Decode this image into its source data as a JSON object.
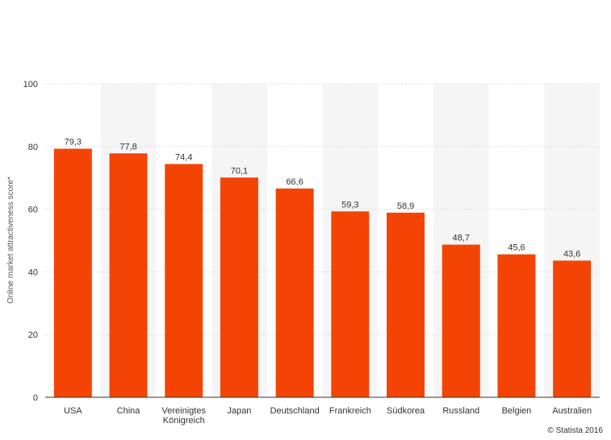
{
  "credit": "© Statista 2016",
  "colors": {
    "bar": "#f44405",
    "band": "#f5f5f5",
    "grid": "#cccccc",
    "axis": "#333333"
  },
  "chart_data": {
    "type": "bar",
    "ylabel": "Online market attractiveness score*",
    "ylim": [
      0,
      100
    ],
    "yticks": [
      0,
      20,
      40,
      60,
      80,
      100
    ],
    "grid": true,
    "categories": [
      [
        "USA"
      ],
      [
        "China"
      ],
      [
        "Vereinigtes",
        "Königreich"
      ],
      [
        "Japan"
      ],
      [
        "Deutschland"
      ],
      [
        "Frankreich"
      ],
      [
        "Südkorea"
      ],
      [
        "Russland"
      ],
      [
        "Belgien"
      ],
      [
        "Australien"
      ]
    ],
    "values": [
      79.3,
      77.8,
      74.4,
      70.1,
      66.6,
      59.3,
      58.9,
      48.7,
      45.6,
      43.6
    ],
    "value_labels": [
      "79,3",
      "77,8",
      "74,4",
      "70,1",
      "66,6",
      "59,3",
      "58,9",
      "48,7",
      "45,6",
      "43,6"
    ]
  }
}
